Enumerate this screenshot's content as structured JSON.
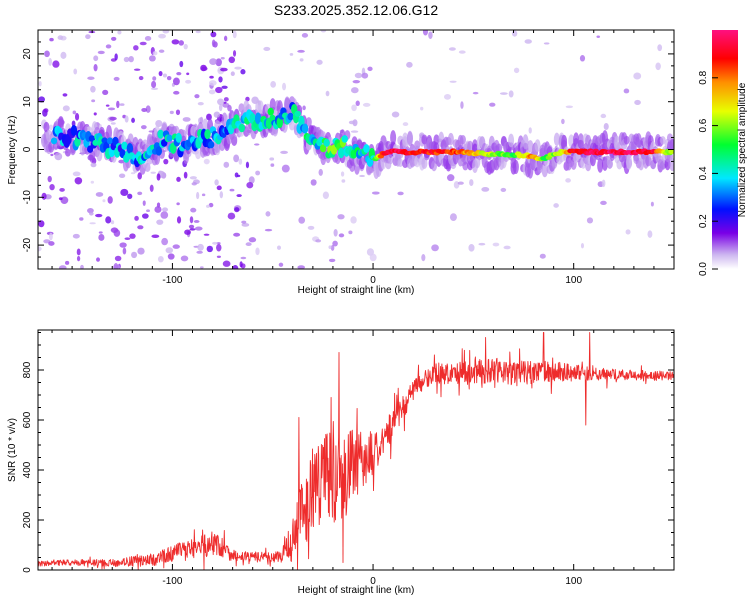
{
  "title": "S233.2025.352.12.06.G12",
  "chart_data": [
    {
      "type": "heatmap",
      "xlabel": "Height of straight line (km)",
      "ylabel": "Frequency (Hz)",
      "xlim": [
        -167,
        150
      ],
      "ylim": [
        -25,
        25
      ],
      "xticks": [
        -100,
        0,
        100
      ],
      "yticks": [
        -20,
        -10,
        0,
        10,
        20
      ],
      "colorbar": {
        "label": "Normalized spectral amplitude",
        "range": [
          0,
          1
        ],
        "ticks": [
          0,
          0.2,
          0.4,
          0.6,
          0.8
        ],
        "colormap": "rainbow: white-violet(0) -> blue -> cyan -> green -> yellow -> red -> pink(1)"
      },
      "ridge": {
        "x": [
          -155,
          -145,
          -135,
          -125,
          -115,
          -105,
          -95,
          -85,
          -75,
          -65,
          -55,
          -45,
          -40,
          -35,
          -30,
          -25,
          -20,
          -15,
          -10,
          -5,
          0,
          5,
          10,
          20,
          40,
          60,
          70,
          80,
          85,
          90,
          95,
          100,
          110,
          120,
          130,
          140,
          148
        ],
        "y": [
          3,
          2,
          1,
          0,
          -2,
          2,
          1,
          2,
          3,
          6,
          6,
          7,
          8,
          4,
          2,
          1,
          0,
          1,
          -1,
          -1,
          -2,
          -1,
          -0.5,
          -0.5,
          -0.5,
          -1,
          -1,
          -1.5,
          -2,
          -1,
          -0.5,
          -0.5,
          -0.5,
          -0.5,
          -0.5,
          -0.5,
          -0.5
        ],
        "amp": [
          0.3,
          0.35,
          0.35,
          0.3,
          0.35,
          0.35,
          0.35,
          0.35,
          0.35,
          0.35,
          0.4,
          0.4,
          0.35,
          0.4,
          0.4,
          0.45,
          0.5,
          0.5,
          0.45,
          0.4,
          0.4,
          0.9,
          0.95,
          0.9,
          0.85,
          0.6,
          0.55,
          0.8,
          0.55,
          0.6,
          0.7,
          0.9,
          0.95,
          0.95,
          0.95,
          0.9,
          0.6
        ]
      }
    },
    {
      "type": "line",
      "xlabel": "Height of straight line (km)",
      "ylabel": "SNR (10 * v/v)",
      "xlim": [
        -167,
        150
      ],
      "ylim": [
        0,
        960
      ],
      "xticks": [
        -100,
        0,
        100
      ],
      "yticks": [
        0,
        200,
        400,
        600,
        800
      ],
      "series": [
        {
          "name": "SNR",
          "color": "#ee2c2c",
          "x": [
            -167,
            -150,
            -130,
            -110,
            -95,
            -85,
            -78,
            -70,
            -60,
            -50,
            -45,
            -40,
            -35,
            -30,
            -25,
            -20,
            -15,
            -10,
            -5,
            0,
            5,
            10,
            15,
            20,
            25,
            30,
            35,
            40,
            50,
            60,
            70,
            80,
            90,
            100,
            110,
            120,
            130,
            140,
            150
          ],
          "mean": [
            25,
            30,
            28,
            40,
            80,
            95,
            105,
            60,
            55,
            50,
            60,
            130,
            230,
            330,
            380,
            400,
            380,
            420,
            440,
            470,
            530,
            580,
            650,
            720,
            760,
            780,
            790,
            785,
            790,
            800,
            790,
            790,
            795,
            790,
            785,
            780,
            780,
            778,
            775
          ],
          "noise": [
            10,
            12,
            15,
            25,
            35,
            45,
            50,
            25,
            20,
            20,
            30,
            90,
            150,
            180,
            200,
            220,
            210,
            140,
            110,
            90,
            70,
            60,
            50,
            40,
            40,
            40,
            45,
            45,
            50,
            50,
            50,
            45,
            40,
            35,
            25,
            25,
            20,
            20,
            18
          ],
          "spikes": [
            {
              "x": -85,
              "y": 160
            },
            {
              "x": -37,
              "y": 610
            },
            {
              "x": -21,
              "y": 690
            },
            {
              "x": -17,
              "y": 870
            },
            {
              "x": -15,
              "y": 30
            },
            {
              "x": 56,
              "y": 930
            },
            {
              "x": 85,
              "y": 950
            },
            {
              "x": 106,
              "y": 580
            },
            {
              "x": 108,
              "y": 950
            }
          ]
        }
      ]
    }
  ]
}
